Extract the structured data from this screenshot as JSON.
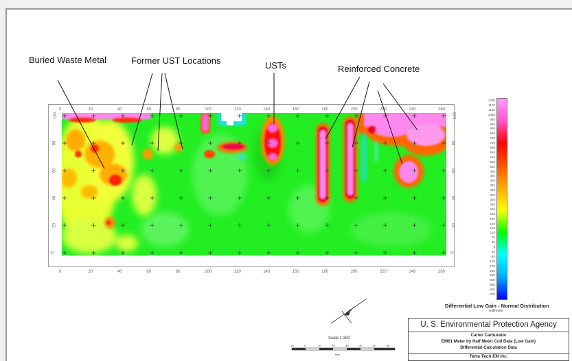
{
  "annotations": {
    "buried_waste_metal": "Buried Waste Metal",
    "former_ust_locations": "Former UST Locations",
    "usts": "USTs",
    "reinforced_concrete": "Reinforced Concrete"
  },
  "map": {
    "x_ticks": [
      "0",
      "20",
      "40",
      "60",
      "80",
      "100",
      "120",
      "140",
      "160",
      "180",
      "200",
      "220",
      "240",
      "260"
    ],
    "y_ticks": [
      "0",
      "20",
      "40",
      "60",
      "80",
      "100"
    ]
  },
  "legend": {
    "title": "Differential Low Gain - Normal Distribution",
    "units": "millivolts",
    "values": [
      "1300",
      "1170",
      "1100",
      "1060",
      "980",
      "960",
      "900",
      "840",
      "780",
      "730",
      "690",
      "650",
      "610",
      "560",
      "520",
      "490",
      "450",
      "420",
      "380",
      "350",
      "320",
      "300",
      "280",
      "250",
      "210",
      "190",
      "160",
      "150",
      "110",
      "70",
      "40",
      "0",
      "-40",
      "-80",
      "-130",
      "-170",
      "-220",
      "-260",
      "-300",
      "-350",
      "-400",
      "-470"
    ],
    "colors": [
      "#ff99ff",
      "#ff55cc",
      "#ff0000",
      "#ff5500",
      "#ffaa00",
      "#ffff00",
      "#00ff00",
      "#00ffff",
      "#00aaff",
      "#0000ff"
    ]
  },
  "title_block": {
    "agency": "U. S. Environmental Protection Agency",
    "site": "Carter Carburator",
    "survey": "EM61 Meter by Half Meter Coil Data (Low Gain)",
    "data_type": "Differential Calculation Data",
    "firm": "Tetra Tech EM Inc."
  },
  "scale": {
    "label": "Scale 1:300",
    "ticks": [
      "10",
      "0",
      "10",
      "20",
      "30",
      "40",
      "50",
      "60"
    ],
    "unit": "feet"
  }
}
